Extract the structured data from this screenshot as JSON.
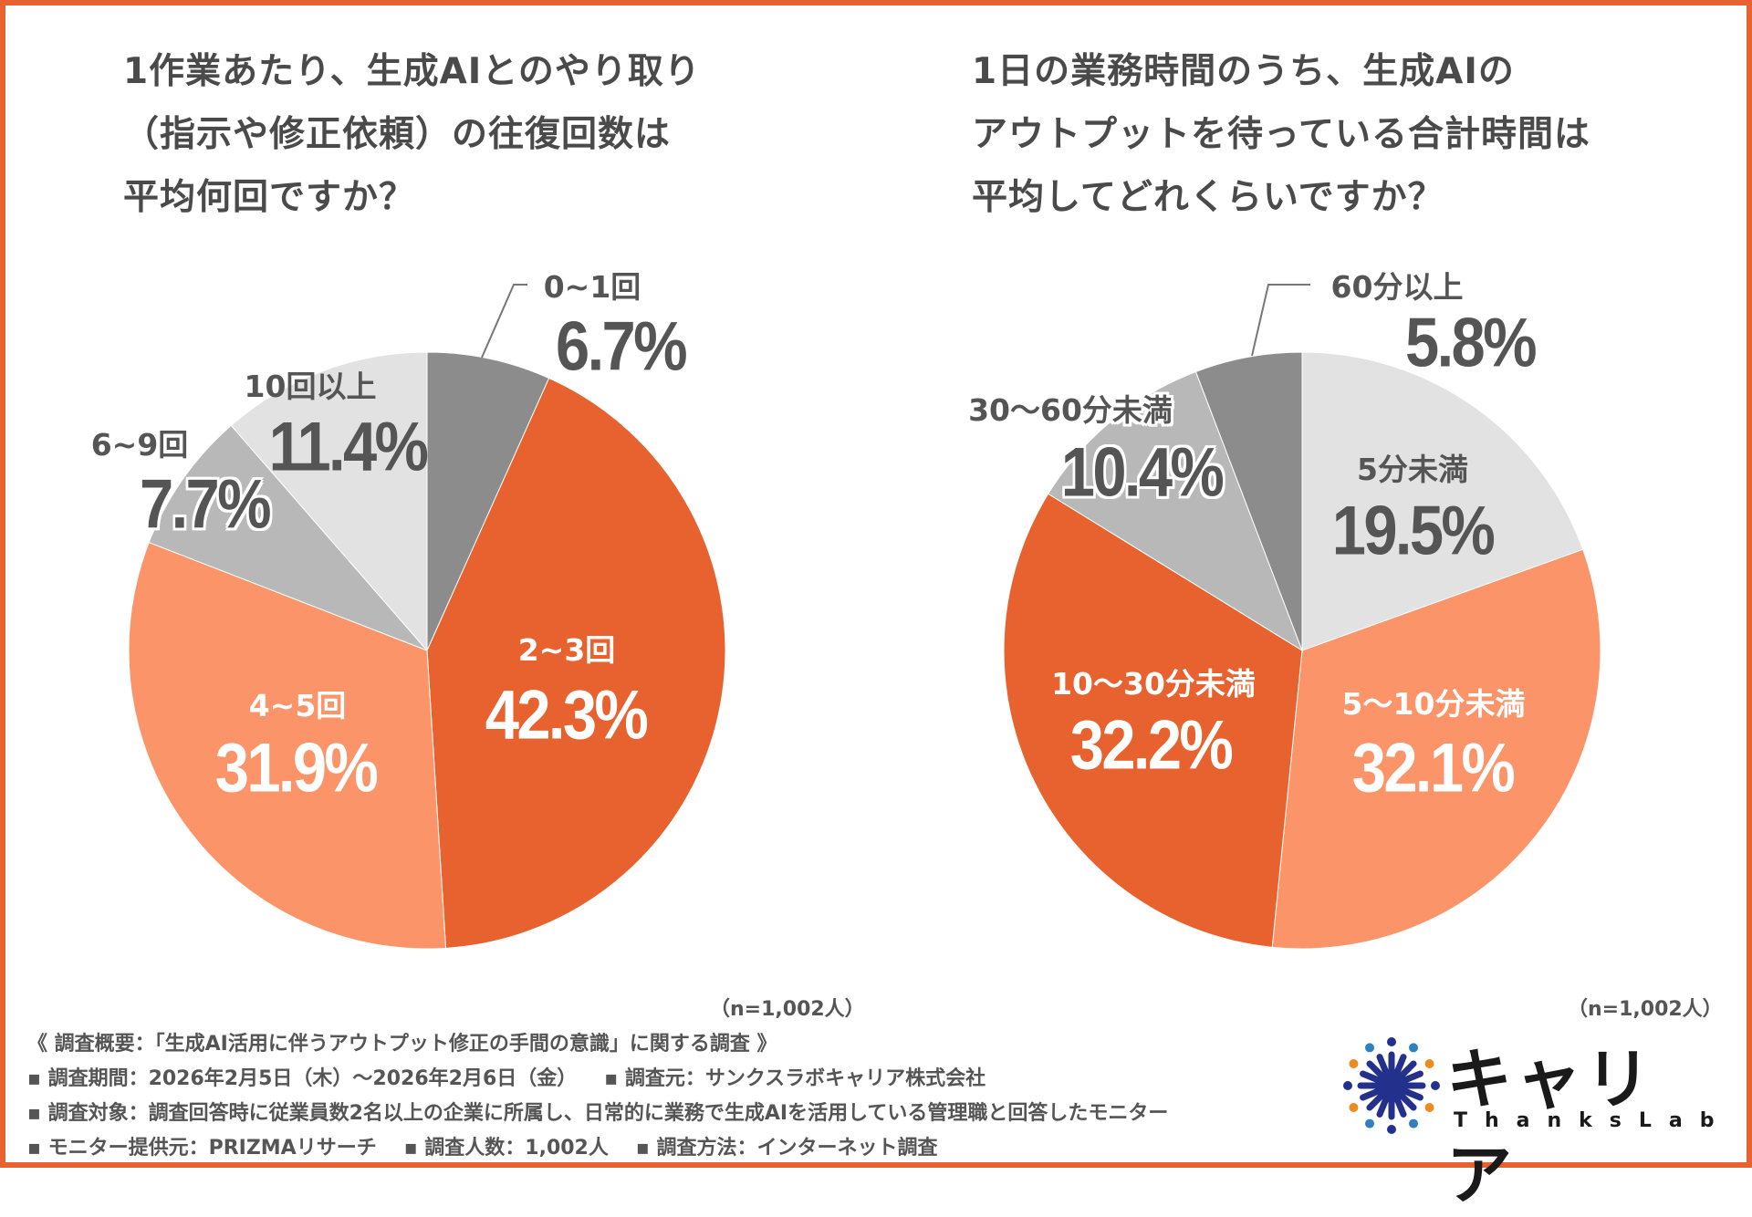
{
  "chart_data": [
    {
      "type": "pie",
      "title": [
        "1作業あたり、生成AIとのやり取り",
        "（指示や修正依頼）の往復回数は",
        "平均何回ですか？"
      ],
      "categories": [
        "0~1回",
        "2~3回",
        "4~5回",
        "6~9回",
        "10回以上"
      ],
      "values": [
        6.7,
        42.3,
        31.9,
        7.7,
        11.4
      ],
      "labels": [
        "6.7%",
        "42.3%",
        "31.9%",
        "7.7%",
        "11.4%"
      ],
      "colors": [
        "#8c8c8c",
        "#e8622f",
        "#fb9469",
        "#b8b8b8",
        "#e2e2e2"
      ],
      "sample": "（n=1,002人）"
    },
    {
      "type": "pie",
      "title": [
        "1日の業務時間のうち、生成AIの",
        "アウトプットを待っている合計時間は",
        "平均してどれくらいですか？"
      ],
      "categories": [
        "5分未満",
        "5～10分未満",
        "10～30分未満",
        "30～60分未満",
        "60分以上"
      ],
      "values": [
        19.5,
        32.1,
        32.2,
        10.4,
        5.8
      ],
      "labels": [
        "19.5%",
        "32.1%",
        "32.2%",
        "10.4%",
        "5.8%"
      ],
      "colors": [
        "#e2e2e2",
        "#fb9469",
        "#e8622f",
        "#b8b8b8",
        "#8c8c8c"
      ],
      "sample": "（n=1,002人）"
    }
  ],
  "footer": {
    "overview": "《 調査概要：「生成AI活用に伴うアウトプット修正の手間の意識」に関する調査 》",
    "period": "▪ 調査期間：2026年2月5日（木）～2026年2月6日（金）",
    "source": "▪ 調査元：サンクスラボキャリア株式会社",
    "target": "▪ 調査対象：調査回答時に従業員数2名以上の企業に所属し、日常的に業務で生成AIを活用している管理職と回答したモニター",
    "provider": "▪ モニター提供元：PRIZMAリサーチ",
    "count": "▪ 調査人数：1,002人",
    "method": "▪ 調査方法：インターネット調査"
  },
  "logo": {
    "main": "キャリア",
    "sub": "ThanksLab",
    "colors": {
      "navy": "#23318c",
      "blue": "#2f7fc1",
      "orange": "#ee8a1f"
    }
  },
  "accent": "#e8622f"
}
